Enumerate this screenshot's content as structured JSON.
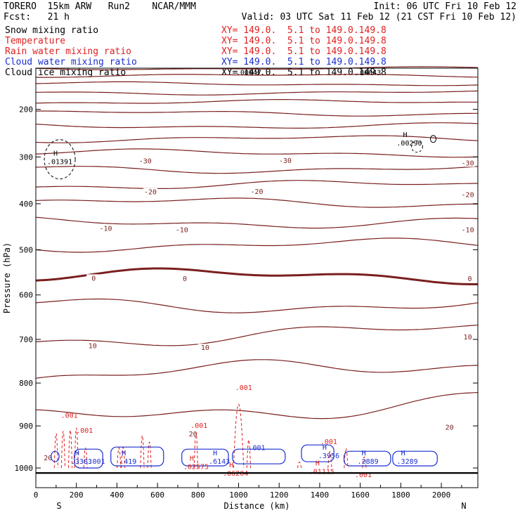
{
  "header": {
    "line1_left": "TORERO  15km ARW   Run2    NCAR/MMM",
    "line1_right": "Init: 06 UTC Fri 10 Feb 12",
    "line2_left": "Fcst:   21 h",
    "line2_right": "Valid: 03 UTC Sat 11 Feb 12 (21 CST Fri 10 Feb 12)"
  },
  "fields": [
    {
      "name": "Snow mixing ratio",
      "xy": "XY= 149.0.  5.1 to 149.0.149.8",
      "color": "#000000"
    },
    {
      "name": "Temperature",
      "xy": "XY= 149.0.  5.1 to 149.0.149.8",
      "color": "#e02020"
    },
    {
      "name": "Rain water mixing ratio",
      "xy": "XY= 149.0.  5.1 to 149.0.149.8",
      "color": "#e02020"
    },
    {
      "name": "Cloud water mixing ratio",
      "xy": "XY= 149.0.  5.1 to 149.0.149.8",
      "color": "#1a2fd0"
    },
    {
      "name": "Cloud ice mixing ratio",
      "xy": "XY= 149.0.  5.1 to 149.0.149.8",
      "color": "#000000"
    }
  ],
  "chart_data": {
    "type": "cross-section contour",
    "xlabel": "Distance (km)",
    "ylabel": "Pressure (hPa)",
    "xlim": [
      0,
      2180
    ],
    "ylim": [
      1050,
      105
    ],
    "x_ticks": [
      0,
      200,
      400,
      600,
      800,
      1000,
      1200,
      1400,
      1600,
      1800,
      2000
    ],
    "y_ticks": [
      200,
      300,
      400,
      500,
      600,
      700,
      800,
      900,
      1000
    ],
    "x_end_labels": {
      "left": "S",
      "right": "N"
    },
    "colors": {
      "temperature": "#7a1f1f",
      "rain": "#e02020",
      "cloud_water": "#1a2fd0",
      "cloud_ice": "#000000"
    },
    "temperature_isotherms": [
      {
        "level": -70,
        "p": 115
      },
      {
        "level": -65,
        "p": 130
      },
      {
        "level": -60,
        "p": 147
      },
      {
        "level": -55,
        "p": 165
      },
      {
        "level": -50,
        "p": 185
      },
      {
        "level": -45,
        "p": 208
      },
      {
        "level": -40,
        "p": 234
      },
      {
        "level": -35,
        "p": 262
      },
      {
        "level": -30,
        "p": 292
      },
      {
        "level": -25,
        "p": 325
      },
      {
        "level": -20,
        "p": 360
      },
      {
        "level": -15,
        "p": 398
      },
      {
        "level": -10,
        "p": 440
      },
      {
        "level": -5,
        "p": 490
      },
      {
        "level": 0,
        "p": 558,
        "bold": true
      },
      {
        "level": 5,
        "p": 625
      },
      {
        "level": 10,
        "p": 700
      },
      {
        "level": 15,
        "p": 790
      },
      {
        "level": 20,
        "p": 890
      }
    ],
    "temperature_labels": [
      {
        "text": "-30",
        "x": 540,
        "p": 308
      },
      {
        "text": "-30",
        "x": 1230,
        "p": 307
      },
      {
        "text": "-30",
        "x": 2130,
        "p": 312
      },
      {
        "text": "-20",
        "x": 565,
        "p": 374
      },
      {
        "text": "-20",
        "x": 1090,
        "p": 373
      },
      {
        "text": "-20",
        "x": 2130,
        "p": 380
      },
      {
        "text": "-10",
        "x": 345,
        "p": 453
      },
      {
        "text": "-10",
        "x": 720,
        "p": 456
      },
      {
        "text": "-10",
        "x": 2130,
        "p": 456
      },
      {
        "text": "0",
        "x": 285,
        "p": 562
      },
      {
        "text": "0",
        "x": 735,
        "p": 563
      },
      {
        "text": "0",
        "x": 2140,
        "p": 563
      },
      {
        "text": "10",
        "x": 280,
        "p": 714
      },
      {
        "text": "10",
        "x": 835,
        "p": 718
      },
      {
        "text": "10",
        "x": 2130,
        "p": 694
      },
      {
        "text": "20",
        "x": 775,
        "p": 918
      },
      {
        "text": "20",
        "x": 2040,
        "p": 902
      },
      {
        "text": "20",
        "x": 60,
        "p": 975
      }
    ],
    "maxima": [
      {
        "x": 118,
        "p": 309,
        "value": ".01391",
        "field": "cloud_ice"
      },
      {
        "x": 1842,
        "p": 270,
        "value": ".00290",
        "field": "cloud_ice"
      },
      {
        "x": 225,
        "p": 983,
        "value": ".3383",
        "field": "cloud_water"
      },
      {
        "x": 455,
        "p": 983,
        "value": ".419",
        "field": "cloud_water"
      },
      {
        "x": 905,
        "p": 983,
        "value": ".6143",
        "field": "cloud_water"
      },
      {
        "x": 1445,
        "p": 970,
        "value": ".3956",
        "field": "cloud_water"
      },
      {
        "x": 1638,
        "p": 983,
        "value": ".2889",
        "field": "cloud_water"
      },
      {
        "x": 1832,
        "p": 983,
        "value": ".3289",
        "field": "cloud_water"
      },
      {
        "x": 790,
        "p": 996,
        "value": ".02575",
        "field": "rain"
      },
      {
        "x": 985,
        "p": 1012,
        "value": ".06204",
        "field": "rain"
      },
      {
        "x": 1410,
        "p": 1008,
        "value": ".01115",
        "field": "rain"
      }
    ],
    "cloud_ice_upper_labels": [
      {
        "text": ".00047",
        "x": 1050,
        "p": 128
      },
      {
        "text": ".00043",
        "x": 1640,
        "p": 128
      }
    ],
    "rain_labels": [
      {
        "text": ".001",
        "x": 165,
        "p": 881
      },
      {
        "text": ".001",
        "x": 240,
        "p": 916
      },
      {
        "text": ".001",
        "x": 1025,
        "p": 816
      },
      {
        "text": ".001",
        "x": 805,
        "p": 905
      },
      {
        "text": ".001",
        "x": 1445,
        "p": 943
      },
      {
        "text": ".001",
        "x": 1615,
        "p": 1022
      }
    ],
    "cloud_water_labels": [
      {
        "text": ".001",
        "x": 1090,
        "p": 957
      },
      {
        "text": ".001",
        "x": 300,
        "p": 990
      }
    ]
  }
}
